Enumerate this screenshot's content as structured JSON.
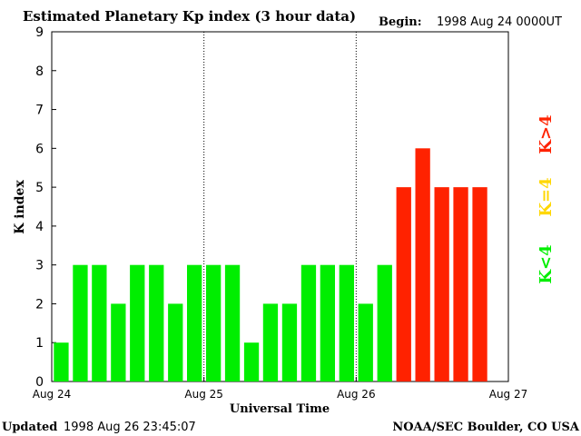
{
  "header": {
    "title": "Estimated Planetary Kp index (3 hour data)",
    "begin_label": "Begin:",
    "begin_value": "1998 Aug 24 0000UT"
  },
  "footer": {
    "updated_label": "Updated",
    "updated_value": "1998 Aug 26 23:45:07",
    "credit": "NOAA/SEC Boulder, CO USA"
  },
  "legend": {
    "low": "K<4",
    "equal": "K=4",
    "high": "K>4"
  },
  "colors": {
    "low": "#00ee00",
    "equal": "#ffd700",
    "high": "#ff2200",
    "axis": "#000000"
  },
  "chart_data": {
    "type": "bar",
    "title": "Estimated Planetary Kp index (3 hour data)",
    "xlabel": "Universal Time",
    "ylabel": "K index",
    "ylim": [
      0,
      9
    ],
    "yticks": [
      0,
      1,
      2,
      3,
      4,
      5,
      6,
      7,
      8,
      9
    ],
    "xtick_labels": [
      "Aug 24",
      "Aug 25",
      "Aug 26",
      "Aug 27"
    ],
    "grid": "dotted vertical day separators",
    "values": [
      1,
      3,
      3,
      2,
      3,
      3,
      2,
      3,
      3,
      3,
      1,
      2,
      2,
      3,
      3,
      3,
      2,
      3,
      5,
      6,
      5,
      5,
      5
    ]
  }
}
